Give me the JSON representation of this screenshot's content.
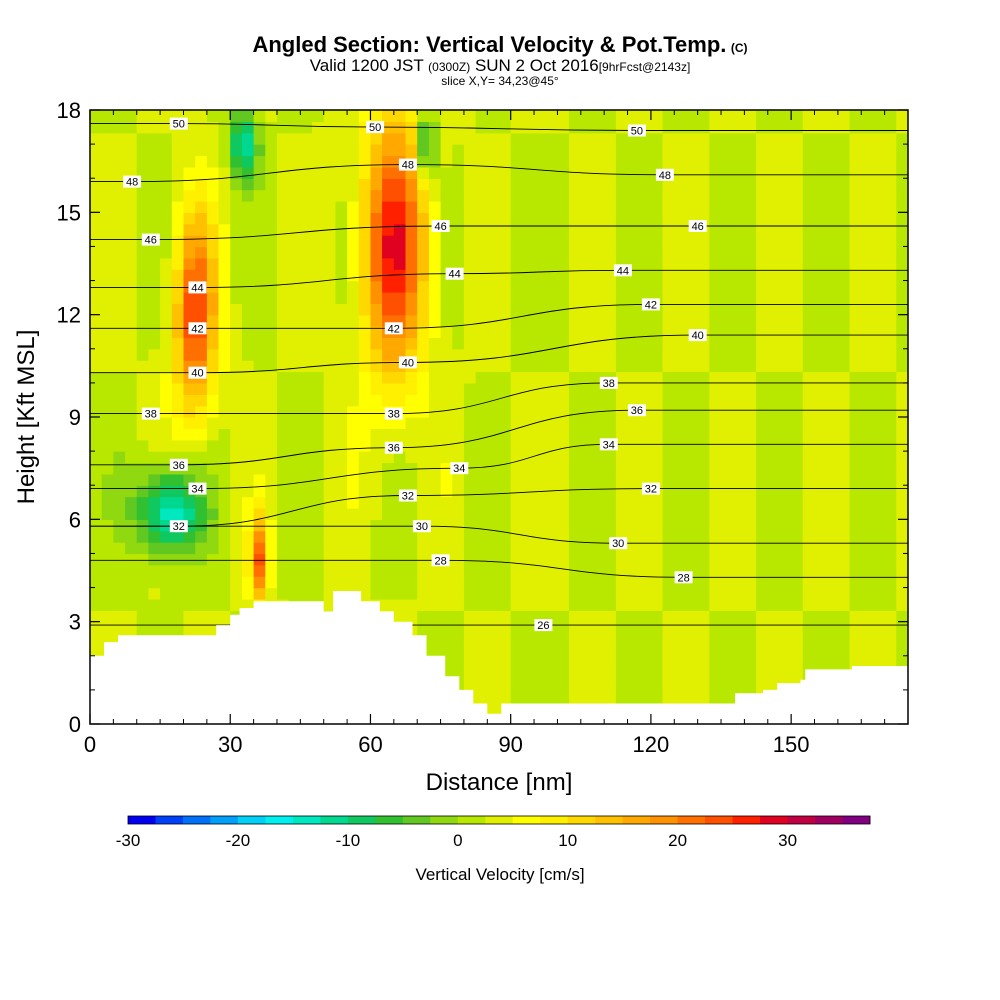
{
  "header": {
    "title": "Angled Section: Vertical Velocity & Pot.Temp.",
    "title_units": "(C)",
    "subtitle_main": "Valid 1200 JST",
    "subtitle_utc": "(0300Z)",
    "subtitle_date": "SUN 2 Oct 2016",
    "subtitle_fcst": "[9hrFcst@2143z]",
    "slice": "slice X,Y= 34,23@45°"
  },
  "chart_data": {
    "type": "heatmap",
    "title": "Angled Section: Vertical Velocity & Pot.Temp. (C)",
    "xlabel": "Distance [nm]",
    "ylabel": "Height [Kft MSL]",
    "xlim": [
      0,
      175
    ],
    "ylim": [
      0,
      18
    ],
    "x_ticks": [
      0,
      30,
      60,
      90,
      120,
      150
    ],
    "y_ticks": [
      0,
      3,
      6,
      9,
      12,
      15,
      18
    ],
    "grid": false,
    "colorbar": {
      "label": "Vertical Velocity [cm/s]",
      "min": -30,
      "max": 35,
      "step": 2.5,
      "tick_values": [
        -30,
        -20,
        -10,
        0,
        10,
        20,
        30
      ],
      "colors": [
        "#0000f0",
        "#0040f8",
        "#0070f8",
        "#00a0f8",
        "#00d0f8",
        "#00f0f0",
        "#00e8c0",
        "#00d890",
        "#10c860",
        "#30c030",
        "#60c820",
        "#90d810",
        "#b8e800",
        "#e0f000",
        "#ffff00",
        "#fff000",
        "#ffd800",
        "#ffc000",
        "#ffa800",
        "#ff9000",
        "#ff7000",
        "#ff5000",
        "#ff2000",
        "#e00020",
        "#c00040",
        "#a00060",
        "#800080"
      ]
    },
    "vertical_velocity_features": [
      {
        "kind": "updraft",
        "x_range": [
          18,
          27
        ],
        "height_range": [
          9,
          15
        ],
        "peak": 22
      },
      {
        "kind": "updraft",
        "x_range": [
          58,
          72
        ],
        "height_range": [
          10,
          18
        ],
        "peak": 24
      },
      {
        "kind": "updraft",
        "x_range": [
          34,
          38
        ],
        "height_range": [
          3.6,
          6
        ],
        "peak": 20
      },
      {
        "kind": "downdraft",
        "x_range": [
          10,
          24
        ],
        "height_range": [
          5,
          7.5
        ],
        "peak": -18
      },
      {
        "kind": "downdraft",
        "x_range": [
          30,
          36
        ],
        "height_range": [
          16,
          18
        ],
        "peak": -15
      },
      {
        "kind": "downdraft",
        "x_range": [
          70,
          74
        ],
        "height_range": [
          16,
          18
        ],
        "peak": -15
      }
    ],
    "potential_temperature_contours": [
      {
        "value": 26,
        "label_positions": [
          [
            97,
            2.9
          ]
        ]
      },
      {
        "value": 28,
        "label_positions": [
          [
            75,
            4.8
          ],
          [
            127,
            4.3
          ]
        ]
      },
      {
        "value": 30,
        "label_positions": [
          [
            71,
            5.8
          ],
          [
            113,
            5.3
          ]
        ]
      },
      {
        "value": 32,
        "label_positions": [
          [
            19,
            5.8
          ],
          [
            68,
            6.7
          ],
          [
            120,
            6.9
          ]
        ]
      },
      {
        "value": 34,
        "label_positions": [
          [
            23,
            6.9
          ],
          [
            79,
            7.5
          ],
          [
            111,
            8.2
          ]
        ]
      },
      {
        "value": 36,
        "label_positions": [
          [
            19,
            7.6
          ],
          [
            65,
            8.1
          ],
          [
            117,
            9.2
          ]
        ]
      },
      {
        "value": 38,
        "label_positions": [
          [
            13,
            9.1
          ],
          [
            65,
            9.1
          ],
          [
            111,
            10.0
          ]
        ]
      },
      {
        "value": 40,
        "label_positions": [
          [
            23,
            10.3
          ],
          [
            68,
            10.6
          ],
          [
            130,
            11.4
          ]
        ]
      },
      {
        "value": 42,
        "label_positions": [
          [
            23,
            11.6
          ],
          [
            65,
            11.6
          ],
          [
            120,
            12.3
          ]
        ]
      },
      {
        "value": 44,
        "label_positions": [
          [
            23,
            12.8
          ],
          [
            78,
            13.2
          ],
          [
            114,
            13.3
          ]
        ]
      },
      {
        "value": 46,
        "label_positions": [
          [
            13,
            14.2
          ],
          [
            75,
            14.6
          ],
          [
            130,
            14.6
          ]
        ]
      },
      {
        "value": 48,
        "label_positions": [
          [
            9,
            15.9
          ],
          [
            68,
            16.4
          ],
          [
            123,
            16.1
          ]
        ]
      },
      {
        "value": 50,
        "label_positions": [
          [
            19,
            17.6
          ],
          [
            61,
            17.5
          ],
          [
            117,
            17.4
          ]
        ]
      }
    ],
    "terrain": [
      [
        0,
        2
      ],
      [
        3,
        2
      ],
      [
        3,
        2.4
      ],
      [
        6,
        2.4
      ],
      [
        6,
        2.6
      ],
      [
        21,
        2.6
      ],
      [
        21,
        2.6
      ],
      [
        27,
        2.6
      ],
      [
        27,
        2.9
      ],
      [
        30,
        2.9
      ],
      [
        30,
        3.2
      ],
      [
        32,
        3.2
      ],
      [
        32,
        3.4
      ],
      [
        35,
        3.4
      ],
      [
        35,
        3.6
      ],
      [
        50,
        3.6
      ],
      [
        50,
        3.3
      ],
      [
        52,
        3.3
      ],
      [
        52,
        3.9
      ],
      [
        58,
        3.9
      ],
      [
        58,
        3.6
      ],
      [
        62,
        3.6
      ],
      [
        62,
        3.3
      ],
      [
        65,
        3.3
      ],
      [
        65,
        3
      ],
      [
        69,
        3
      ],
      [
        69,
        2.6
      ],
      [
        72,
        2.6
      ],
      [
        72,
        2
      ],
      [
        76,
        2
      ],
      [
        76,
        1.4
      ],
      [
        79,
        1.4
      ],
      [
        79,
        1
      ],
      [
        82,
        1
      ],
      [
        82,
        0.6
      ],
      [
        85,
        0.6
      ],
      [
        85,
        0.3
      ],
      [
        88,
        0.3
      ],
      [
        88,
        0.6
      ],
      [
        126,
        0.6
      ],
      [
        126,
        0.6
      ],
      [
        130,
        0.6
      ],
      [
        130,
        0.6
      ],
      [
        138,
        0.6
      ],
      [
        138,
        0.9
      ],
      [
        144,
        0.9
      ],
      [
        144,
        1
      ],
      [
        147,
        1
      ],
      [
        147,
        1.2
      ],
      [
        152,
        1.2
      ],
      [
        152,
        1.3
      ],
      [
        153,
        1.3
      ],
      [
        153,
        1.6
      ],
      [
        163,
        1.6
      ],
      [
        163,
        1.7
      ],
      [
        175,
        1.7
      ]
    ]
  }
}
